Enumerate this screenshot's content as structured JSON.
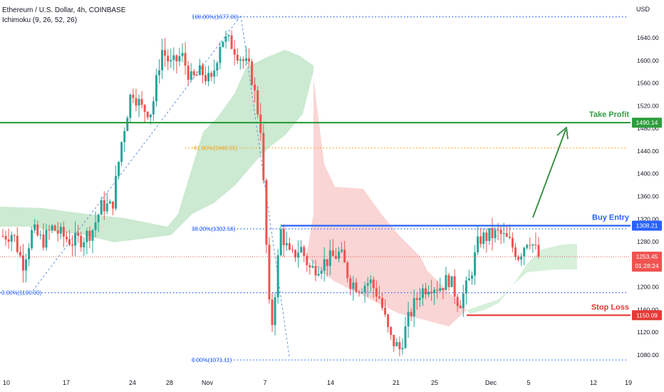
{
  "header": {
    "symbol_title": "Ethereum / U.S. Dollar, 4h, COINBASE",
    "indicator": "Ichimoku (9, 26, 52, 26)"
  },
  "price_axis": {
    "currency": "USD",
    "ticks": [
      "1640.00",
      "1600.00",
      "1560.00",
      "1520.00",
      "1480.00",
      "1440.00",
      "1400.00",
      "1360.00",
      "1320.00",
      "1280.00",
      "1240.00",
      "1200.00",
      "1160.00",
      "1120.00",
      "1080.00"
    ]
  },
  "time_axis": {
    "ticks": [
      "10",
      "17",
      "24",
      "28",
      "Nov",
      "7",
      "14",
      "21",
      "25",
      "Dec",
      "5",
      "12",
      "19"
    ]
  },
  "colors": {
    "take_profit": "#2e9e3e",
    "buy_entry": "#2962ff",
    "stop_loss": "#e53935",
    "bull_candle": "#26a69a",
    "bear_candle": "#ef5350",
    "fib": "#2962ff",
    "fib_618": "#f5a623",
    "arrow": "#2e8b3a"
  },
  "chart_data": {
    "type": "candlestick",
    "symbol": "Ethereum / U.S. Dollar",
    "interval": "4h",
    "exchange": "COINBASE",
    "y_range": [
      1060,
      1700
    ],
    "y_scale": "linear",
    "grid": false,
    "levels": {
      "take_profit": {
        "label": "Take Profit",
        "value": "1490.14"
      },
      "buy_entry": {
        "label": "Buy Entry",
        "value": "1308.21"
      },
      "stop_loss": {
        "label": "Stop Loss",
        "value": "1150.09"
      },
      "last_price": {
        "value": "1253.45",
        "countdown": "01:28:24"
      }
    },
    "fibonacci": [
      {
        "label": "100.00%(1677.00)",
        "value": 1677.0
      },
      {
        "label": "61.80%(1445.55)",
        "value": 1445.55
      },
      {
        "label": "38.20%(1302.56)",
        "value": 1302.56
      },
      {
        "label": "0.00%(1190.00)",
        "value": 1190.0
      },
      {
        "label": "0.00%(1071.11)",
        "value": 1071.11
      }
    ],
    "price_path": [
      [
        "Oct 10",
        1290
      ],
      [
        "Oct 12",
        1295
      ],
      [
        "Oct 13",
        1240
      ],
      [
        "Oct 14",
        1300
      ],
      [
        "Oct 16",
        1280
      ],
      [
        "Oct 17",
        1305
      ],
      [
        "Oct 18",
        1290
      ],
      [
        "Oct 20",
        1280
      ],
      [
        "Oct 21",
        1285
      ],
      [
        "Oct 22",
        1300
      ],
      [
        "Oct 23",
        1345
      ],
      [
        "Oct 24",
        1340
      ],
      [
        "Oct 25",
        1460
      ],
      [
        "Oct 26",
        1550
      ],
      [
        "Oct 27",
        1515
      ],
      [
        "Oct 28",
        1510
      ],
      [
        "Oct 29",
        1620
      ],
      [
        "Oct 30",
        1590
      ],
      [
        "Oct 31",
        1610
      ],
      [
        "Nov 1",
        1565
      ],
      [
        "Nov 2",
        1580
      ],
      [
        "Nov 3",
        1560
      ],
      [
        "Nov 4",
        1640
      ],
      [
        "Nov 5",
        1630
      ],
      [
        "Nov 6",
        1605
      ],
      [
        "Nov 7",
        1580
      ],
      [
        "Nov 8",
        1480
      ],
      [
        "Nov 9",
        1110
      ],
      [
        "Nov 10",
        1300
      ],
      [
        "Nov 11",
        1250
      ],
      [
        "Nov 12",
        1270
      ],
      [
        "Nov 13",
        1230
      ],
      [
        "Nov 14",
        1240
      ],
      [
        "Nov 15",
        1250
      ],
      [
        "Nov 16",
        1260
      ],
      [
        "Nov 17",
        1210
      ],
      [
        "Nov 18",
        1200
      ],
      [
        "Nov 19",
        1210
      ],
      [
        "Nov 20",
        1180
      ],
      [
        "Nov 21",
        1110
      ],
      [
        "Nov 22",
        1090
      ],
      [
        "Nov 23",
        1150
      ],
      [
        "Nov 24",
        1190
      ],
      [
        "Nov 25",
        1205
      ],
      [
        "Nov 26",
        1200
      ],
      [
        "Nov 27",
        1215
      ],
      [
        "Nov 28",
        1170
      ],
      [
        "Nov 29",
        1210
      ],
      [
        "Nov 30",
        1285
      ],
      [
        "Dec 1",
        1290
      ],
      [
        "Dec 2",
        1295
      ],
      [
        "Dec 3",
        1280
      ],
      [
        "Dec 4",
        1255
      ],
      [
        "Dec 5",
        1290
      ],
      [
        "Dec 6",
        1253.45
      ]
    ]
  }
}
